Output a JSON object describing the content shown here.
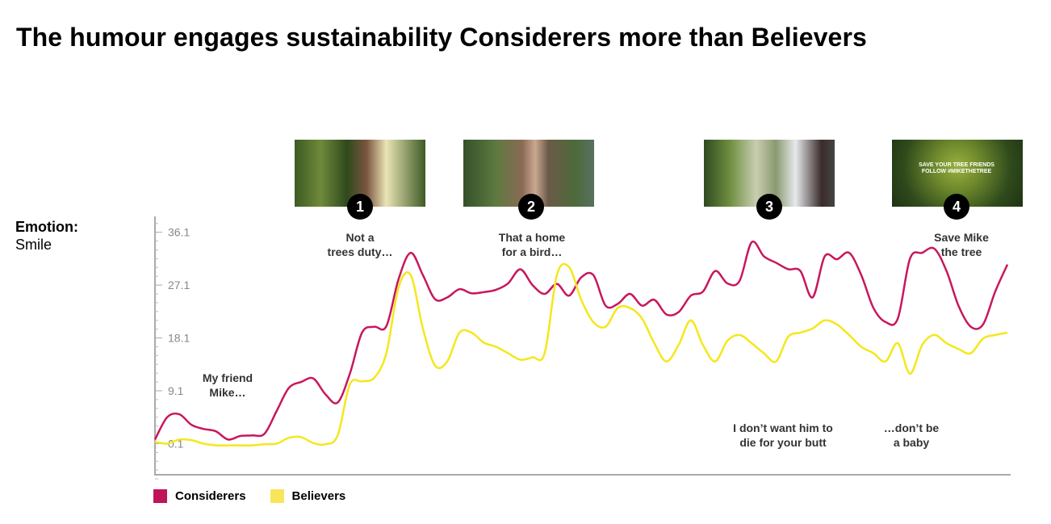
{
  "title": "The humour engages sustainability Considerers more than Believers",
  "emotion": {
    "label": "Emotion:",
    "value": "Smile"
  },
  "scenes": [
    {
      "number": "1",
      "caption": "Not a\ntrees duty…"
    },
    {
      "number": "2",
      "caption": "That a home\nfor a bird…"
    },
    {
      "number": "3",
      "caption": "I don’t want him to\ndie for your butt"
    },
    {
      "number": "4",
      "caption": "Save Mike\nthe tree",
      "logo_text": "SAVE YOUR TREE FRIENDS\nFOLLOW #MIKETHETREE"
    }
  ],
  "annotations": [
    {
      "text": "My friend\nMike…"
    },
    {
      "text": "…don’t be\na baby"
    }
  ],
  "chart_data": {
    "type": "line",
    "title": "",
    "xlabel": "",
    "ylabel": "",
    "yticks": [
      "36.1",
      "27.1",
      "18.1",
      "9.1",
      "0.1"
    ],
    "ytick_values": [
      36.1,
      27.1,
      18.1,
      9.1,
      0.1
    ],
    "ylim": [
      -5.2,
      38.8
    ],
    "grid": false,
    "legend_position": "bottom-left",
    "series": [
      {
        "name": "Considerers",
        "color": "#c8175d",
        "values": [
          0.8,
          4.6,
          5.1,
          3.3,
          2.6,
          2.2,
          0.8,
          1.4,
          1.5,
          1.8,
          5.7,
          9.6,
          10.6,
          11.2,
          8.5,
          7.1,
          12.0,
          19.0,
          20.0,
          20.1,
          28.1,
          32.6,
          28.8,
          24.7,
          25.0,
          26.4,
          25.7,
          25.9,
          26.3,
          27.4,
          29.8,
          27.1,
          25.6,
          27.3,
          25.3,
          28.4,
          28.8,
          23.6,
          23.9,
          25.6,
          23.6,
          24.6,
          22.1,
          22.5,
          25.3,
          26.0,
          29.5,
          27.4,
          27.8,
          34.4,
          32.0,
          30.9,
          29.8,
          29.5,
          25.0,
          32.0,
          31.5,
          32.6,
          28.8,
          23.2,
          20.8,
          21.4,
          31.6,
          32.6,
          33.3,
          29.5,
          23.5,
          20.0,
          20.4,
          26.0,
          30.6
        ]
      },
      {
        "name": "Believers",
        "color": "#f5e71c",
        "values": [
          0.4,
          0.1,
          0.8,
          0.7,
          0.1,
          -0.2,
          -0.2,
          -0.2,
          -0.2,
          0.0,
          0.1,
          1.1,
          1.2,
          0.2,
          0.0,
          1.5,
          10.2,
          10.7,
          11.3,
          15.5,
          26.7,
          28.8,
          19.7,
          13.4,
          14.1,
          19.0,
          19.0,
          17.3,
          16.6,
          15.5,
          14.4,
          14.8,
          15.5,
          28.8,
          30.2,
          24.6,
          20.8,
          20.0,
          23.2,
          23.2,
          21.4,
          17.2,
          14.1,
          16.9,
          21.1,
          16.9,
          14.1,
          17.6,
          18.6,
          17.2,
          15.5,
          14.1,
          18.3,
          19.0,
          19.7,
          21.1,
          20.4,
          18.6,
          16.6,
          15.5,
          14.1,
          17.2,
          12.0,
          16.9,
          18.6,
          17.2,
          16.2,
          15.5,
          18.0,
          18.6,
          19.0
        ]
      }
    ]
  },
  "legend": [
    {
      "label": "Considerers",
      "color": "#c0145a"
    },
    {
      "label": "Believers",
      "color": "#f9e45a"
    }
  ]
}
